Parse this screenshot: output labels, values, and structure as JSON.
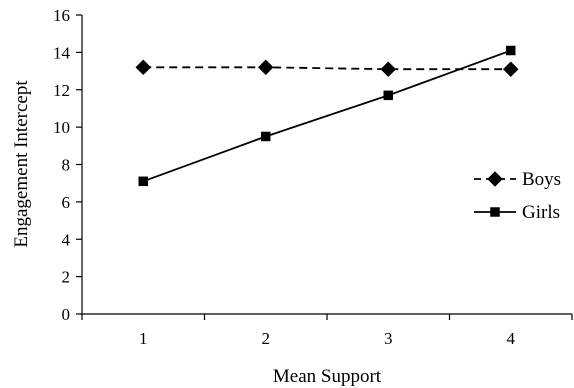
{
  "chart_data": {
    "type": "line",
    "title": "",
    "xlabel": "Mean Support",
    "ylabel": "Engagement Intercept",
    "x": [
      1,
      2,
      3,
      4
    ],
    "x_tick_labels": [
      "1",
      "2",
      "3",
      "4"
    ],
    "xlim": [
      0.5,
      4.5
    ],
    "ylim": [
      0,
      16
    ],
    "y_ticks": [
      0,
      2,
      4,
      6,
      8,
      10,
      12,
      14,
      16
    ],
    "y_tick_labels": [
      "0",
      "2",
      "4",
      "6",
      "8",
      "10",
      "12",
      "14",
      "16"
    ],
    "grid": false,
    "legend_position": "right",
    "series": [
      {
        "name": "Boys",
        "values": [
          13.2,
          13.2,
          13.1,
          13.1
        ],
        "line_style": "dashed",
        "marker": "diamond",
        "color": "#000000"
      },
      {
        "name": "Girls",
        "values": [
          7.1,
          9.5,
          11.7,
          14.1
        ],
        "line_style": "solid",
        "marker": "square",
        "color": "#000000"
      }
    ]
  }
}
